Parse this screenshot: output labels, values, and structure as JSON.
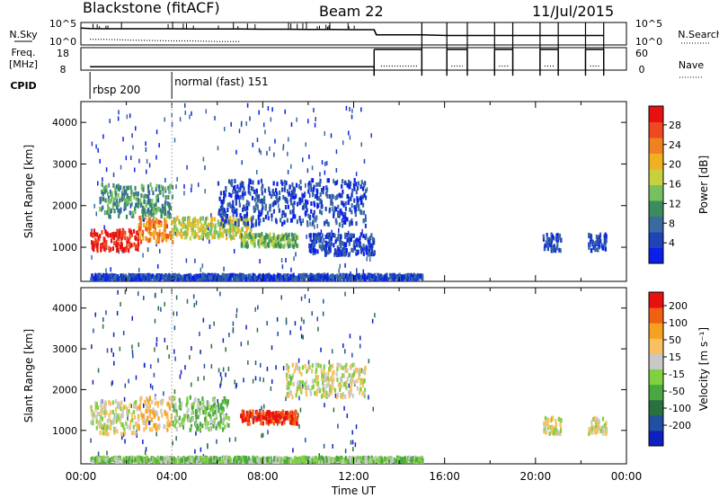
{
  "header": {
    "title": "Blackstone (fitACF)",
    "beam": "Beam 22",
    "date": "11/Jul/2015"
  },
  "chart_data": [
    {
      "type": "line",
      "panel": "nsky-nsearch",
      "left_label": "N.Sky",
      "right_label": "N.Search",
      "left_ticks": [
        "10^5",
        "10^0"
      ],
      "right_ticks": [
        "10^5",
        "10^0"
      ],
      "series": [
        {
          "label_ref": "N.Sky",
          "style": "solid",
          "x": [
            0,
            0.4,
            1,
            2,
            3,
            4,
            5,
            6,
            7,
            8,
            9,
            10,
            11,
            12,
            12.9,
            13,
            15,
            16.1,
            17,
            18.2,
            19,
            20.2,
            21,
            22.2,
            23
          ],
          "y_frac": [
            0.75,
            0.73,
            0.72,
            0.72,
            0.72,
            0.72,
            0.71,
            0.71,
            0.71,
            0.7,
            0.7,
            0.69,
            0.69,
            0.68,
            0.68,
            0.45,
            0.45,
            0.42,
            0.42,
            0.42,
            0.42,
            0.42,
            0.42,
            0.42,
            0.42
          ]
        },
        {
          "label_ref": "N.Search",
          "style": "dotted",
          "x": [
            0.4,
            1,
            2,
            3,
            4,
            5,
            6,
            7
          ],
          "y_frac": [
            0.25,
            0.25,
            0.22,
            0.2,
            0.18,
            0.18,
            0.15,
            0.15
          ]
        }
      ]
    },
    {
      "type": "line",
      "panel": "freq-nave",
      "left_label": "Freq.",
      "left_unit": "[MHz]",
      "right_label": "Nave",
      "left_ticks": [
        "18",
        "8"
      ],
      "right_ticks": [
        "60",
        "0"
      ],
      "series": [
        {
          "label_ref": "Freq.",
          "style": "solid",
          "segments": [
            {
              "x": [
                0.4,
                12.9
              ],
              "y_frac": 0.15
            },
            {
              "x": [
                12.9,
                15.0
              ],
              "y_frac": 0.92
            },
            {
              "x": [
                16.1,
                17.0
              ],
              "y_frac": 0.92
            },
            {
              "x": [
                18.2,
                19.0
              ],
              "y_frac": 0.92
            },
            {
              "x": [
                20.2,
                21.0
              ],
              "y_frac": 0.92
            },
            {
              "x": [
                22.2,
                23.0
              ],
              "y_frac": 0.92
            }
          ]
        },
        {
          "label_ref": "Nave",
          "style": "dotted",
          "segments": [
            {
              "x": [
                13.2,
                14.8
              ],
              "y_frac": 0.18
            },
            {
              "x": [
                16.3,
                16.8
              ],
              "y_frac": 0.18
            },
            {
              "x": [
                18.4,
                18.8
              ],
              "y_frac": 0.18
            },
            {
              "x": [
                20.4,
                20.8
              ],
              "y_frac": 0.18
            },
            {
              "x": [
                22.4,
                22.8
              ],
              "y_frac": 0.18
            }
          ]
        }
      ]
    },
    {
      "type": "table",
      "panel": "cpid",
      "label": "CPID",
      "modes": [
        {
          "start": 0.4,
          "text": "rbsp 200"
        },
        {
          "start": 4.0,
          "text": "normal (fast) 151"
        }
      ]
    },
    {
      "type": "heatmap",
      "panel": "power",
      "ylabel": "Slant Range [km]",
      "xlabel": "",
      "xlim": [
        0,
        24
      ],
      "ylim": [
        180,
        4500
      ],
      "yticks": [
        1000,
        2000,
        3000,
        4000
      ],
      "colorbar": {
        "label": "Power [dB]",
        "ticks": [
          "4",
          "8",
          "12",
          "16",
          "20",
          "24",
          "28"
        ],
        "colors": [
          "#0a1fe8",
          "#1e44b8",
          "#3a6aa0",
          "#3a8c5c",
          "#76c060",
          "#c8d040",
          "#f0b020",
          "#f08020",
          "#f04820",
          "#e81010"
        ]
      },
      "structures": [
        {
          "t0": 0.4,
          "t1": 2.5,
          "r0": 900,
          "r1": 1400,
          "level": 9
        },
        {
          "t0": 2.5,
          "t1": 4.0,
          "r0": 1100,
          "r1": 1700,
          "level": 7
        },
        {
          "t0": 4.0,
          "t1": 7.5,
          "r0": 1200,
          "r1": 1700,
          "level": 5
        },
        {
          "t0": 7.0,
          "t1": 9.5,
          "r0": 1000,
          "r1": 1300,
          "level": 4
        },
        {
          "t0": 0.8,
          "t1": 4.0,
          "r0": 1700,
          "r1": 2500,
          "level": 3
        },
        {
          "t0": 6.0,
          "t1": 12.5,
          "r0": 1500,
          "r1": 2600,
          "level": 1
        },
        {
          "t0": 10.0,
          "t1": 12.9,
          "r0": 800,
          "r1": 1300,
          "level": 1
        },
        {
          "t0": 0.4,
          "t1": 15.0,
          "r0": 200,
          "r1": 320,
          "level": 1
        },
        {
          "t0": 20.3,
          "t1": 21.1,
          "r0": 900,
          "r1": 1300,
          "level": 1
        },
        {
          "t0": 22.3,
          "t1": 23.1,
          "r0": 900,
          "r1": 1300,
          "level": 1
        }
      ]
    },
    {
      "type": "heatmap",
      "panel": "velocity",
      "ylabel": "Slant Range [km]",
      "xlabel": "Time UT",
      "xlim": [
        0,
        24
      ],
      "ylim": [
        180,
        4500
      ],
      "yticks": [
        1000,
        2000,
        3000,
        4000
      ],
      "xticks": [
        "00:00",
        "04:00",
        "08:00",
        "12:00",
        "16:00",
        "20:00",
        "00:00"
      ],
      "colorbar": {
        "label": "Velocity [m s⁻¹]",
        "ticks": [
          "200",
          "100",
          "50",
          "15",
          "-15",
          "-50",
          "-100",
          "-200"
        ],
        "colors": [
          "#1020c0",
          "#2050a0",
          "#2a7040",
          "#4aa840",
          "#80d040",
          "#c8c8c8",
          "#f8c060",
          "#f8a020",
          "#f06010",
          "#e81010"
        ]
      },
      "structures": [
        {
          "t0": 0.4,
          "t1": 2.5,
          "r0": 900,
          "r1": 1700,
          "level": 5
        },
        {
          "t0": 2.5,
          "t1": 4.0,
          "r0": 1000,
          "r1": 1800,
          "level": 6
        },
        {
          "t0": 4.0,
          "t1": 6.5,
          "r0": 1000,
          "r1": 1800,
          "level": 4
        },
        {
          "t0": 7.0,
          "t1": 9.5,
          "r0": 1150,
          "r1": 1450,
          "level": 9
        },
        {
          "t0": 9.0,
          "t1": 12.5,
          "r0": 1800,
          "r1": 2600,
          "level": 5
        },
        {
          "t0": 0.4,
          "t1": 15.0,
          "r0": 200,
          "r1": 320,
          "level": 4
        },
        {
          "t0": 20.3,
          "t1": 21.1,
          "r0": 900,
          "r1": 1300,
          "level": 5
        },
        {
          "t0": 22.3,
          "t1": 23.1,
          "r0": 900,
          "r1": 1300,
          "level": 5
        }
      ]
    }
  ]
}
